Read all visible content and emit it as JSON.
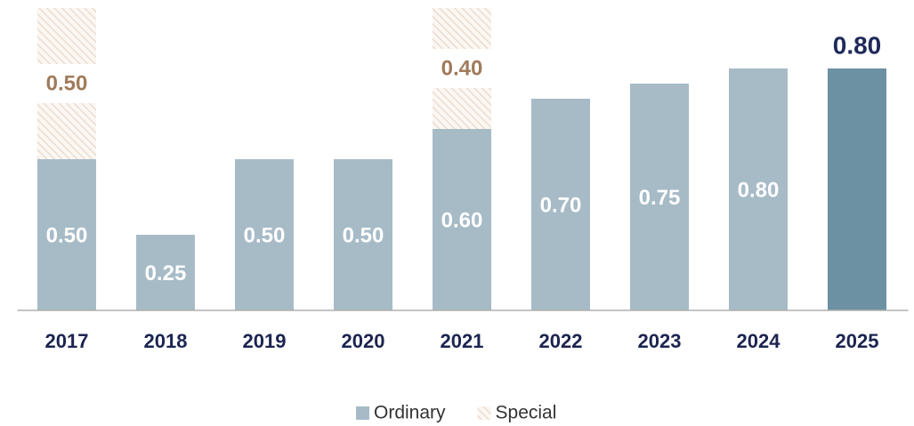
{
  "chart_data": {
    "type": "stacked_bar",
    "categories": [
      "2017",
      "2018",
      "2019",
      "2020",
      "2021",
      "2022",
      "2023",
      "2024",
      "2025"
    ],
    "series": [
      {
        "name": "Ordinary",
        "color": "#a7bbc7",
        "colors": [
          "#a7bbc7",
          "#a7bbc7",
          "#a7bbc7",
          "#a7bbc7",
          "#a7bbc7",
          "#a7bbc7",
          "#a7bbc7",
          "#a7bbc7",
          "#6b91a3"
        ],
        "values": [
          0.5,
          0.25,
          0.5,
          0.5,
          0.6,
          0.7,
          0.75,
          0.8,
          0.8
        ],
        "value_labels": [
          "0.50",
          "0.25",
          "0.50",
          "0.50",
          "0.60",
          "0.70",
          "0.75",
          "0.80",
          "0.80"
        ]
      },
      {
        "name": "Special",
        "color": "#ecdccf",
        "pattern": "hatch",
        "values": [
          0.5,
          null,
          null,
          null,
          0.4,
          null,
          null,
          null,
          null
        ],
        "value_labels": [
          "0.50",
          null,
          null,
          null,
          "0.40",
          null,
          null,
          null,
          null
        ]
      }
    ],
    "ylim": [
      0,
      1.0
    ],
    "legend": "bottom"
  }
}
